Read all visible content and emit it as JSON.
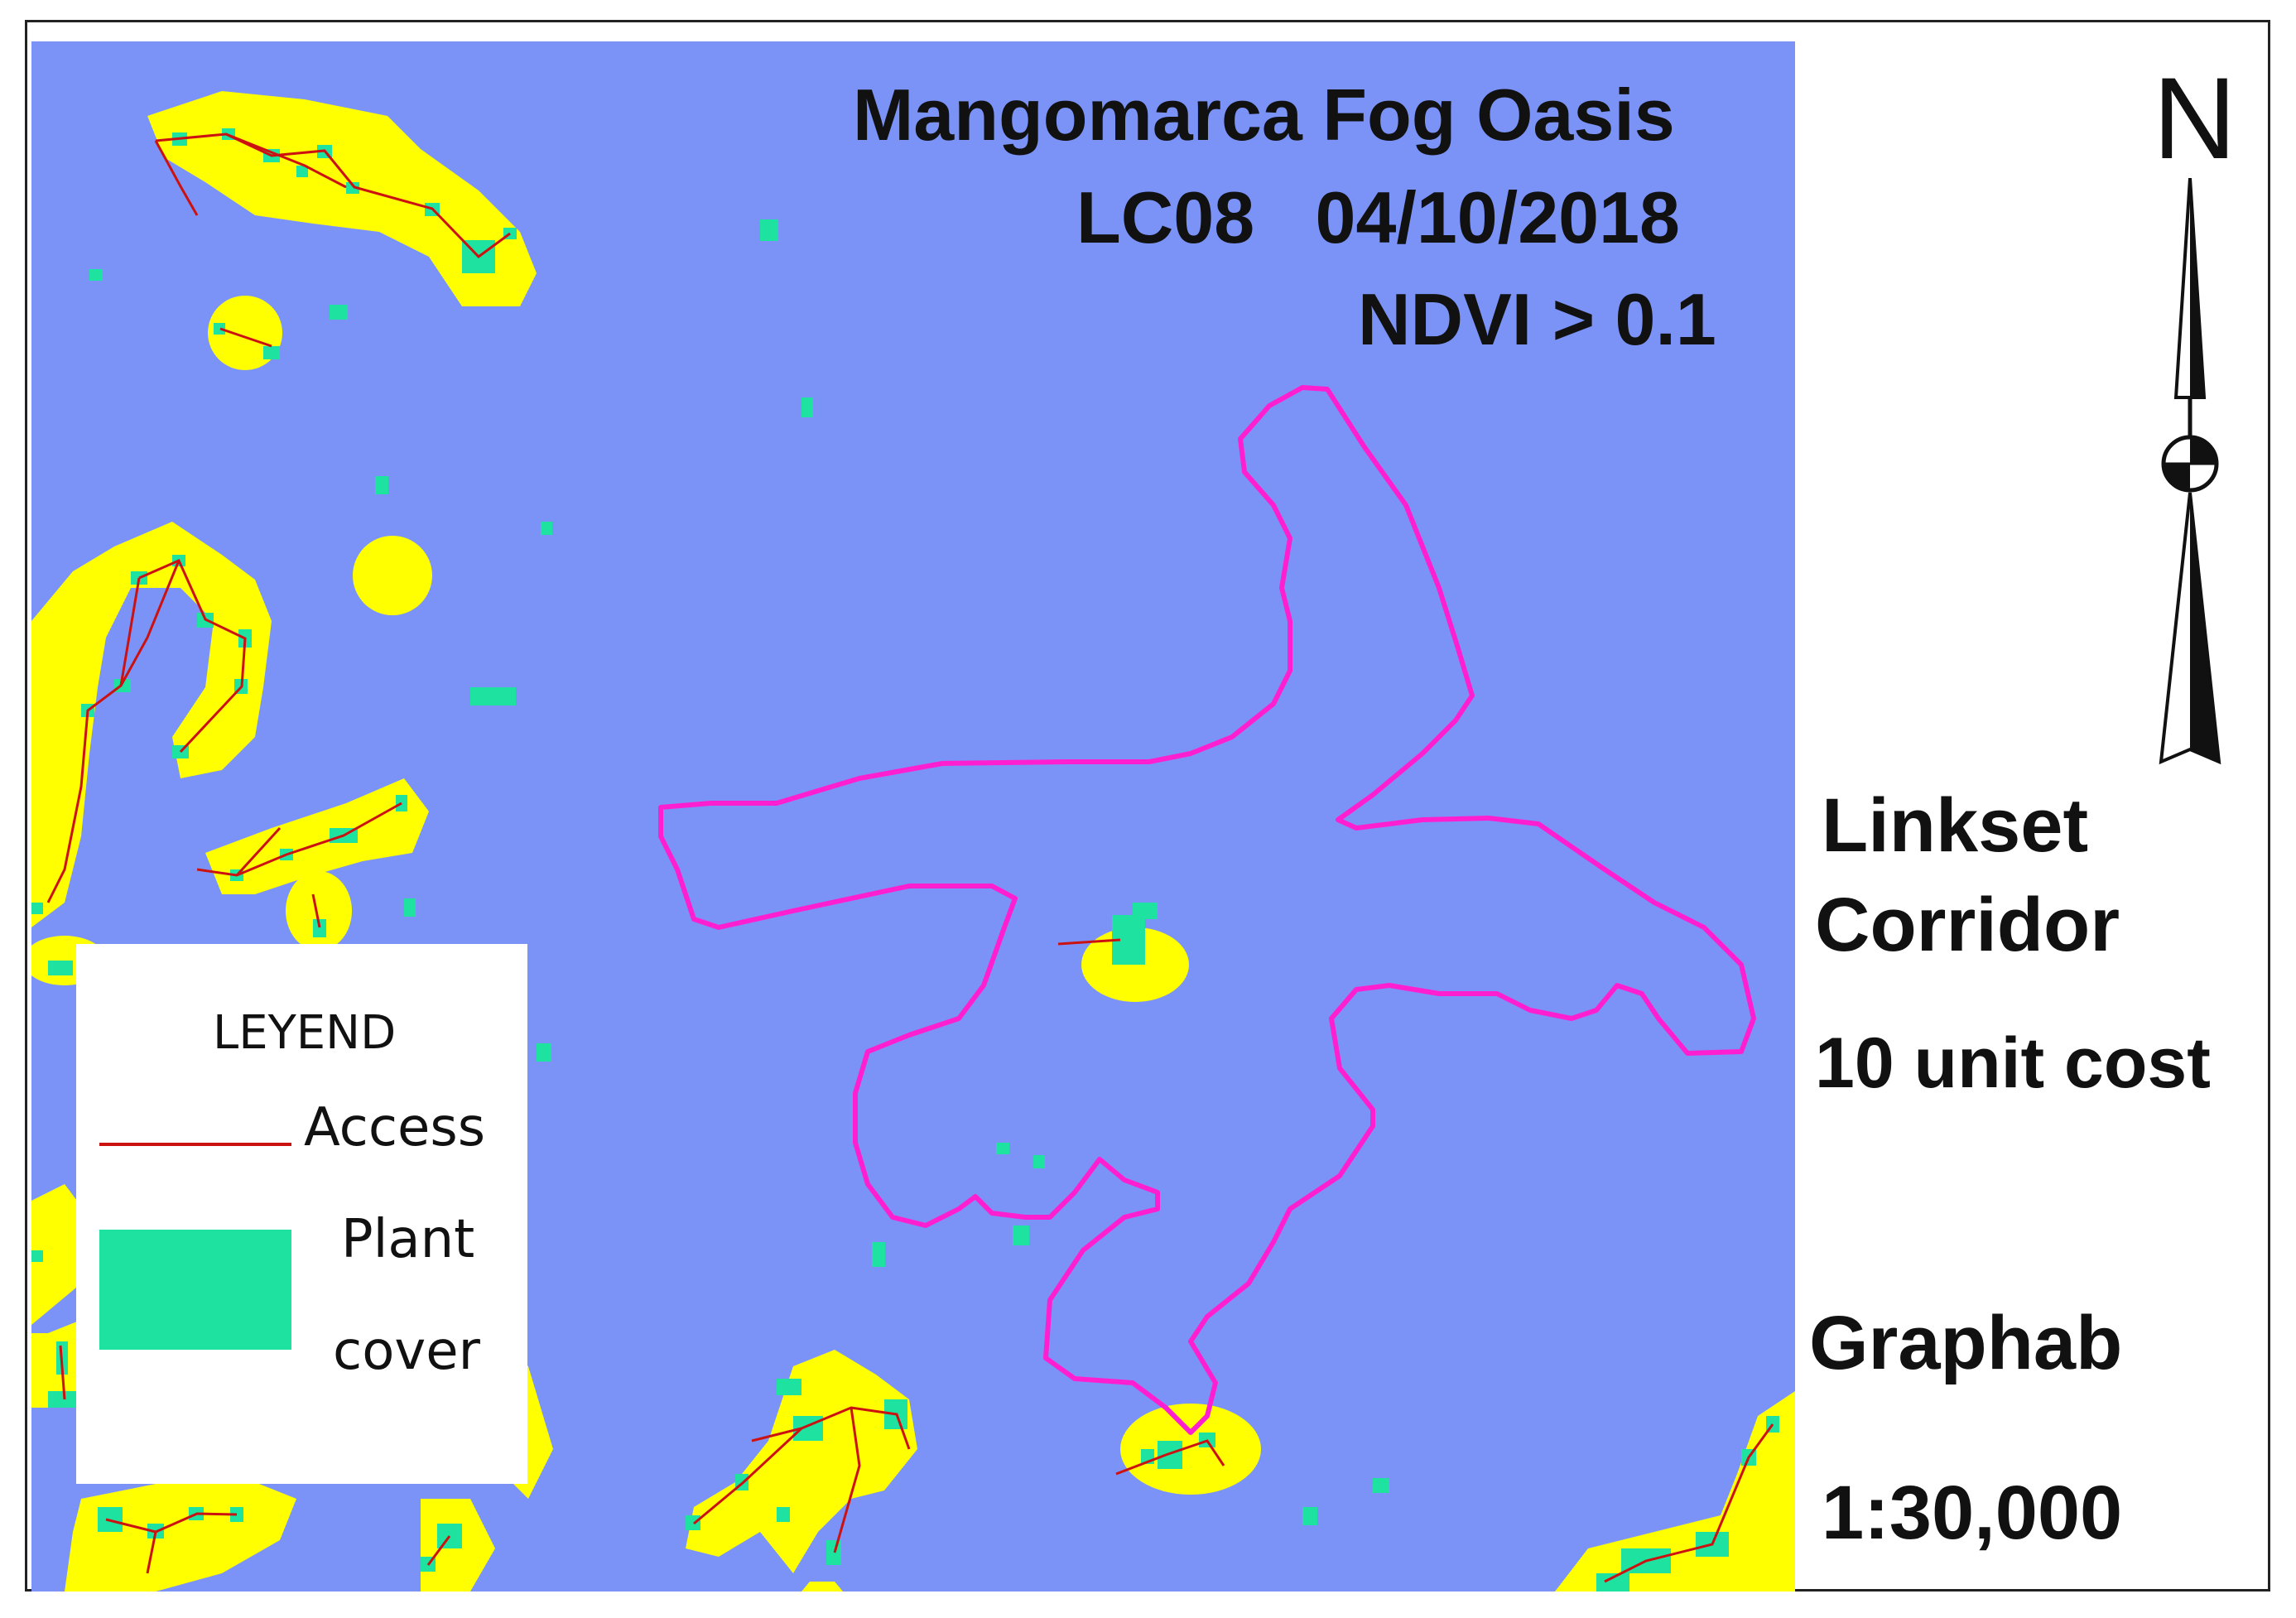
{
  "map": {
    "title": "Mangomarca Fog Oasis",
    "sensor_date": "LC08   04/10/2018",
    "threshold": "NDVI > 0.1",
    "colors": {
      "background": "#7b93f7",
      "buffer": "#ffff00",
      "plant_cover": "#1ee3a0",
      "access_line": "#cc1111",
      "oasis_boundary": "#ff1fd0"
    }
  },
  "north": {
    "label": "N"
  },
  "sidebar": {
    "linkset": "Linkset",
    "corridor": "Corridor",
    "cost": "10 unit cost",
    "software": "Graphab",
    "scale": "1:30,000"
  },
  "legend": {
    "title": "LEYEND",
    "access": "Access",
    "plant": "Plant",
    "cover": "cover"
  }
}
